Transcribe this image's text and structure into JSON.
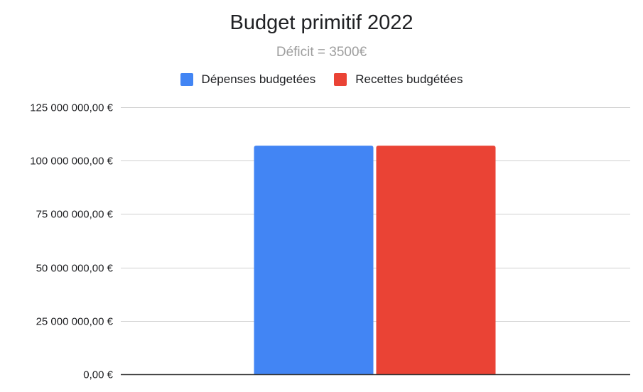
{
  "chart_data": {
    "type": "bar",
    "title": "Budget primitif 2022",
    "subtitle": "Déficit = 3500€",
    "categories": [
      ""
    ],
    "series": [
      {
        "name": "Dépenses budgetées",
        "color": "#4285f4",
        "values": [
          107000000
        ]
      },
      {
        "name": "Recettes budgétées",
        "color": "#ea4335",
        "values": [
          107000000
        ]
      }
    ],
    "ylim": [
      0,
      125000000
    ],
    "yticks": [
      0,
      25000000,
      50000000,
      75000000,
      100000000,
      125000000
    ],
    "ytick_labels": [
      "0,00 €",
      "25 000 000,00 €",
      "50 000 000,00 €",
      "75 000 000,00 €",
      "100 000 000,00 €",
      "125 000 000,00 €"
    ],
    "xlabel": "",
    "ylabel": "",
    "grid": true,
    "legend_position": "top"
  }
}
